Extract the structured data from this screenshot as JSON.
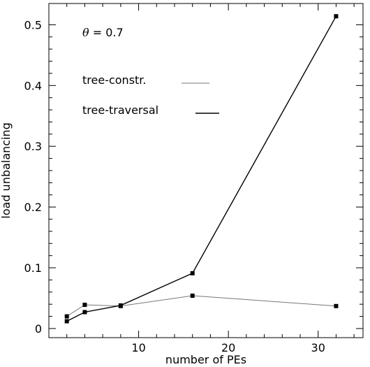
{
  "chart_data": {
    "type": "line",
    "title": "",
    "xlabel": "number of PEs",
    "ylabel": "load unbalancing",
    "xlim": [
      0,
      35
    ],
    "ylim": [
      -0.015,
      0.535
    ],
    "x_ticks": [
      10,
      20,
      30
    ],
    "x_tick_labels": [
      "10",
      "20",
      "30"
    ],
    "y_ticks": [
      0,
      0.1,
      0.2,
      0.3,
      0.4,
      0.5
    ],
    "y_tick_labels": [
      "0",
      "0.1",
      "0.2",
      "0.3",
      "0.4",
      "0.5"
    ],
    "grid": false,
    "annotation": {
      "symbol": "θ",
      "text": "= 0.7"
    },
    "legend_position": "top-left",
    "series": [
      {
        "name": "tree-constr.",
        "color": "#777777",
        "line": "thin",
        "x": [
          2,
          4,
          8,
          16,
          32
        ],
        "y": [
          0.02,
          0.039,
          0.037,
          0.054,
          0.037
        ]
      },
      {
        "name": "tree-traversal",
        "color": "#000000",
        "line": "thick",
        "x": [
          2,
          4,
          8,
          16,
          32
        ],
        "y": [
          0.012,
          0.027,
          0.038,
          0.091,
          0.514
        ]
      }
    ]
  }
}
